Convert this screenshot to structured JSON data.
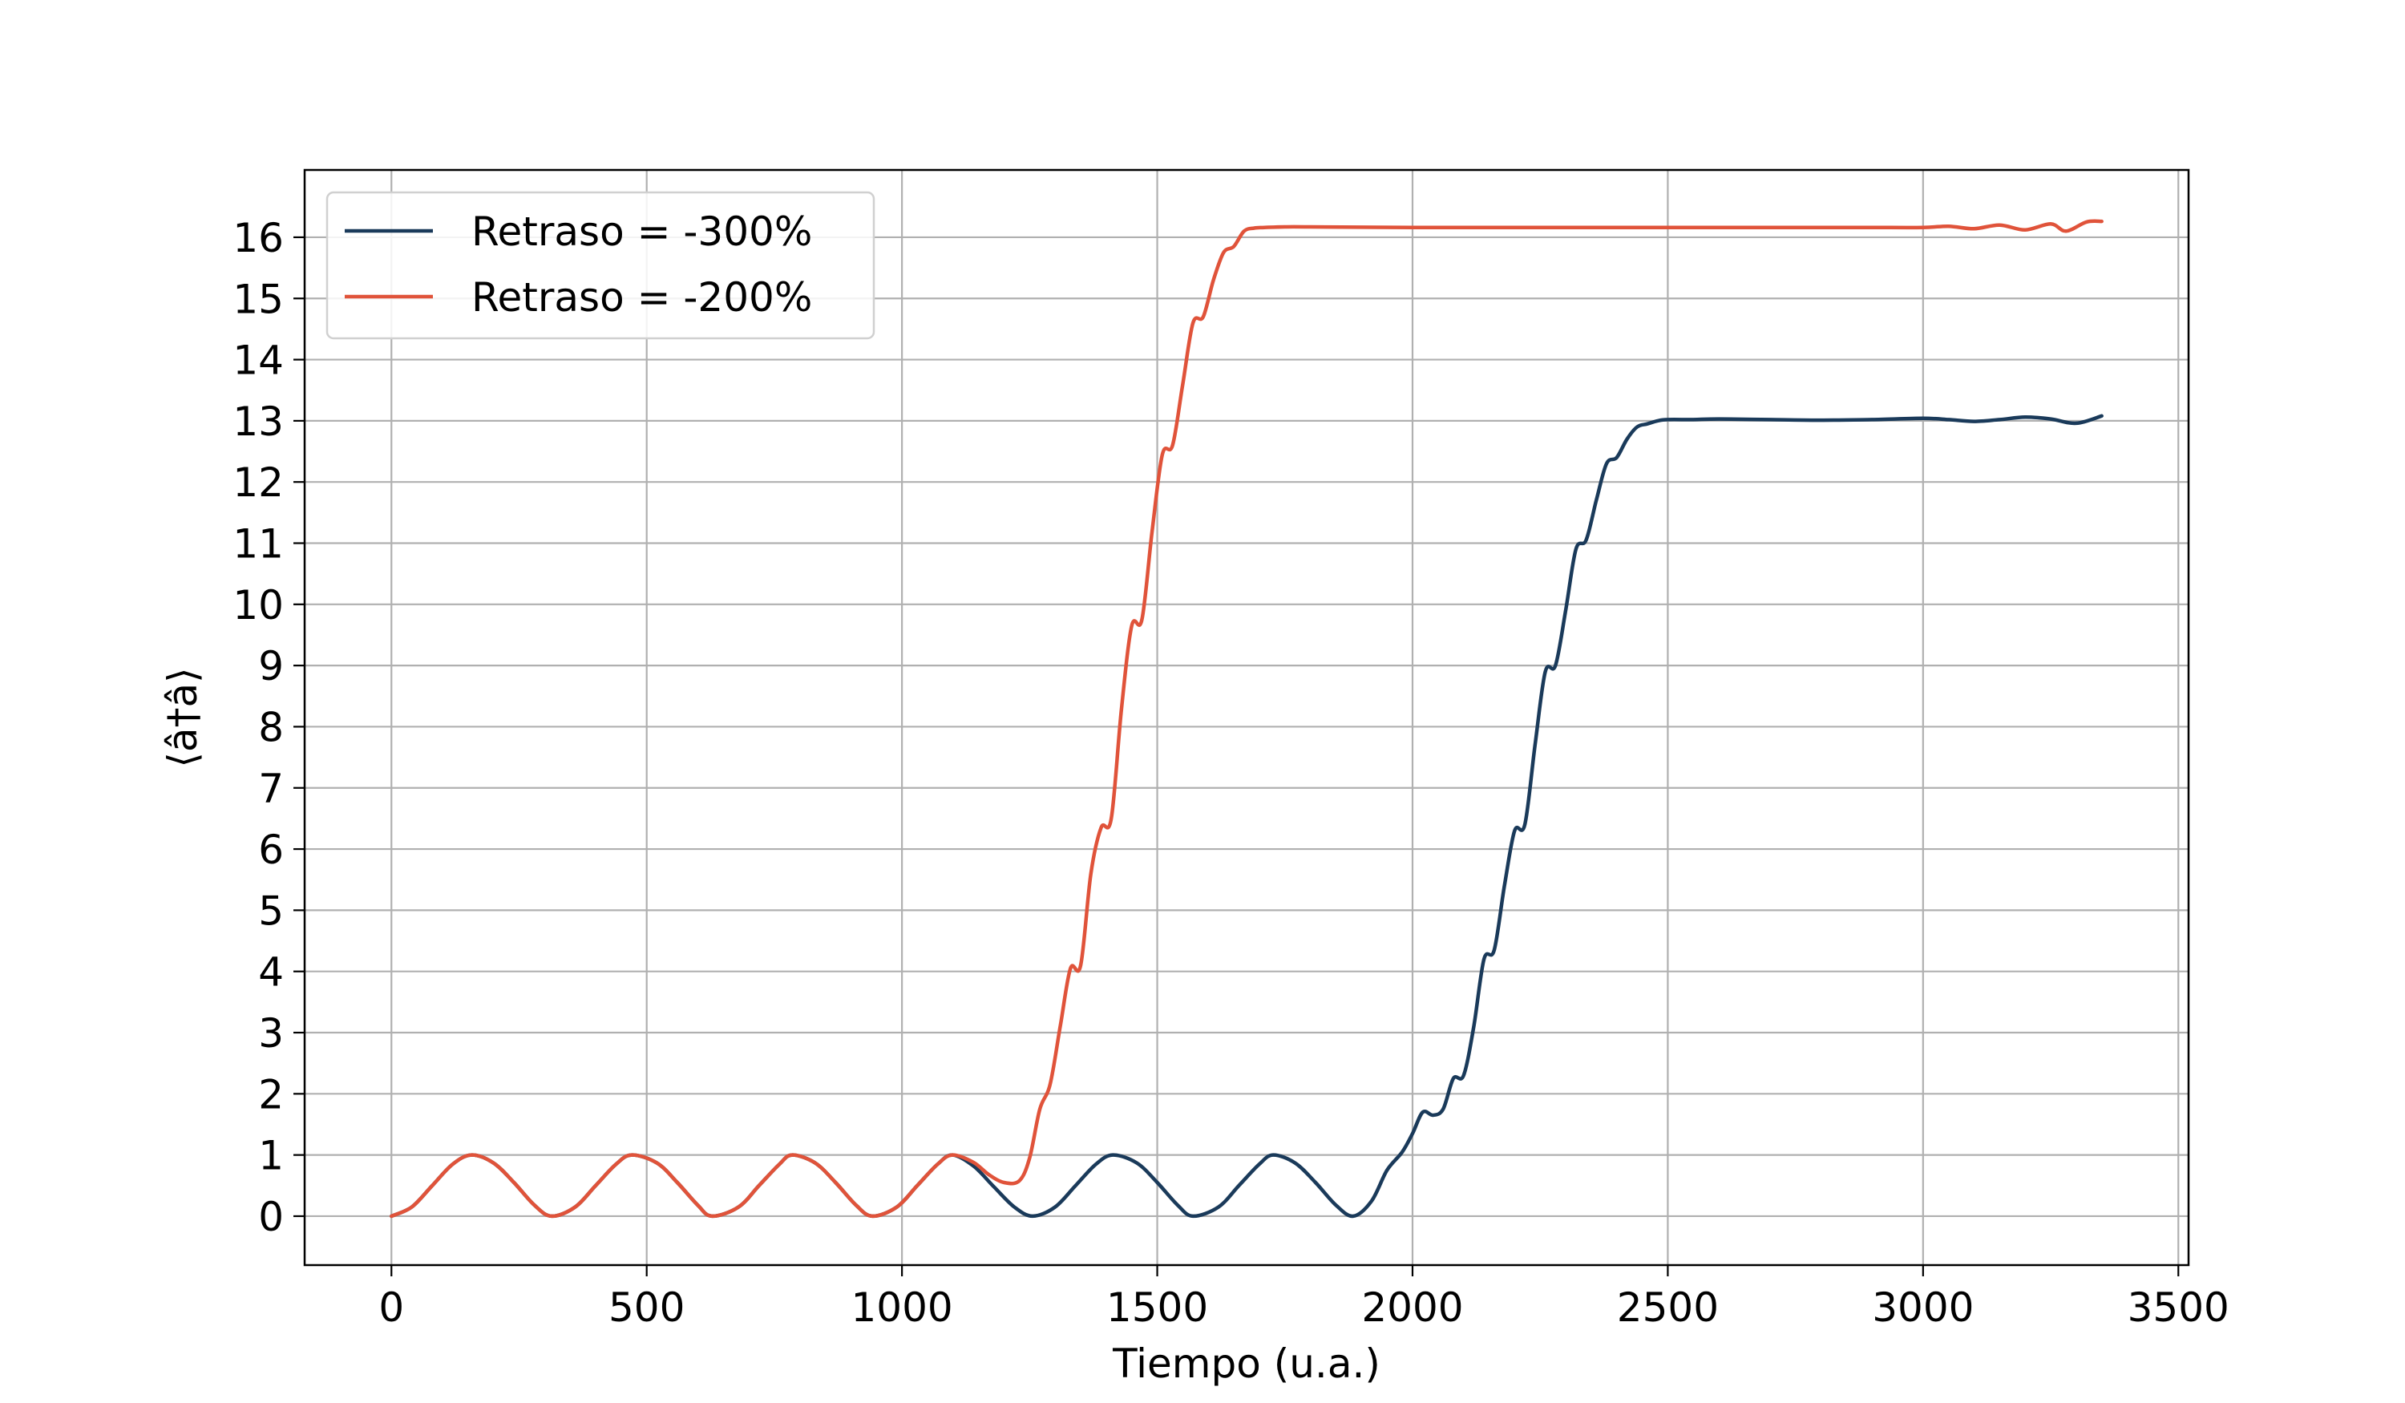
{
  "chart_data": {
    "type": "line",
    "title": "",
    "xlabel": "Tiempo (u.a.)",
    "ylabel": "⟨â†â⟩",
    "xlim": [
      -170,
      3520
    ],
    "ylim": [
      -0.8,
      17.1
    ],
    "xticks": [
      0,
      500,
      1000,
      1500,
      2000,
      2500,
      3000,
      3500
    ],
    "yticks": [
      0,
      1,
      2,
      3,
      4,
      5,
      6,
      7,
      8,
      9,
      10,
      11,
      12,
      13,
      14,
      15,
      16
    ],
    "grid": true,
    "legend_position": "top-left",
    "series": [
      {
        "name": "Retraso = -300%",
        "color": "#1a3a5a",
        "x": [
          0,
          40,
          80,
          120,
          157,
          200,
          240,
          280,
          314,
          360,
          400,
          440,
          471,
          520,
          560,
          600,
          628,
          680,
          720,
          760,
          785,
          830,
          870,
          910,
          942,
          990,
          1030,
          1070,
          1099,
          1140,
          1180,
          1220,
          1256,
          1300,
          1340,
          1380,
          1413,
          1460,
          1500,
          1540,
          1570,
          1620,
          1660,
          1700,
          1727,
          1770,
          1810,
          1850,
          1884,
          1920,
          1950,
          1980,
          2000,
          2020,
          2040,
          2060,
          2080,
          2100,
          2120,
          2140,
          2160,
          2180,
          2200,
          2220,
          2240,
          2260,
          2280,
          2300,
          2320,
          2340,
          2360,
          2380,
          2400,
          2420,
          2440,
          2460,
          2480,
          2500,
          2550,
          2600,
          2700,
          2800,
          2900,
          3000,
          3050,
          3100,
          3150,
          3200,
          3250,
          3300,
          3350
        ],
        "y": [
          0,
          0.15,
          0.5,
          0.85,
          1.0,
          0.87,
          0.55,
          0.18,
          0,
          0.15,
          0.5,
          0.85,
          1.0,
          0.87,
          0.55,
          0.18,
          0,
          0.15,
          0.5,
          0.85,
          1.0,
          0.87,
          0.55,
          0.18,
          0,
          0.15,
          0.5,
          0.85,
          1.0,
          0.82,
          0.48,
          0.15,
          0,
          0.15,
          0.5,
          0.85,
          1.0,
          0.87,
          0.55,
          0.18,
          0,
          0.15,
          0.5,
          0.85,
          1.0,
          0.87,
          0.55,
          0.18,
          0,
          0.25,
          0.75,
          1.05,
          1.35,
          1.7,
          1.65,
          1.75,
          2.25,
          2.3,
          3.1,
          4.2,
          4.35,
          5.4,
          6.3,
          6.4,
          7.7,
          8.9,
          9.0,
          9.9,
          10.9,
          11.05,
          11.7,
          12.3,
          12.4,
          12.7,
          12.9,
          12.95,
          13.0,
          13.02,
          13.02,
          13.03,
          13.02,
          13.01,
          13.02,
          13.04,
          13.02,
          12.99,
          13.02,
          13.06,
          13.03,
          12.96,
          13.08
        ]
      },
      {
        "name": "Retraso = -200%",
        "color": "#e0533a",
        "x": [
          0,
          40,
          80,
          120,
          157,
          200,
          240,
          280,
          314,
          360,
          400,
          440,
          471,
          520,
          560,
          600,
          628,
          680,
          720,
          760,
          785,
          830,
          870,
          910,
          942,
          990,
          1030,
          1070,
          1099,
          1140,
          1170,
          1200,
          1230,
          1250,
          1270,
          1290,
          1310,
          1330,
          1350,
          1370,
          1390,
          1410,
          1430,
          1450,
          1470,
          1490,
          1510,
          1530,
          1550,
          1570,
          1590,
          1610,
          1630,
          1650,
          1670,
          1690,
          1710,
          1750,
          1800,
          2000,
          2200,
          2500,
          2800,
          2900,
          3000,
          3050,
          3100,
          3150,
          3200,
          3250,
          3280,
          3320,
          3350
        ],
        "y": [
          0,
          0.15,
          0.5,
          0.85,
          1.0,
          0.87,
          0.55,
          0.18,
          0,
          0.15,
          0.5,
          0.85,
          1.0,
          0.87,
          0.55,
          0.18,
          0,
          0.15,
          0.5,
          0.85,
          1.0,
          0.87,
          0.55,
          0.18,
          0,
          0.15,
          0.5,
          0.85,
          1.0,
          0.88,
          0.68,
          0.55,
          0.58,
          0.95,
          1.75,
          2.15,
          3.1,
          4.05,
          4.1,
          5.6,
          6.35,
          6.5,
          8.3,
          9.65,
          9.75,
          11.2,
          12.45,
          12.6,
          13.6,
          14.6,
          14.7,
          15.3,
          15.75,
          15.85,
          16.1,
          16.15,
          16.16,
          16.17,
          16.17,
          16.16,
          16.16,
          16.16,
          16.16,
          16.16,
          16.16,
          16.18,
          16.14,
          16.2,
          16.12,
          16.22,
          16.1,
          16.25,
          16.26
        ]
      }
    ]
  }
}
